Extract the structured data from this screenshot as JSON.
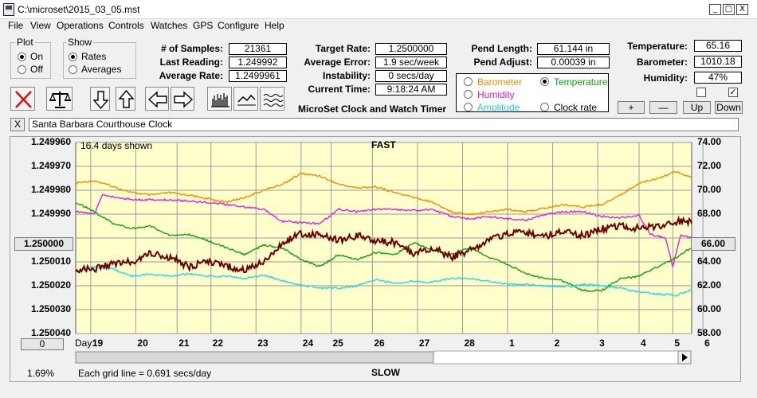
{
  "window": {
    "title": "C:\\microset\\2015_03_05.mst",
    "min_glyph": "_",
    "max_glyph": "□",
    "close_glyph": "X"
  },
  "menu": [
    "File",
    "View",
    "Operations",
    "Controls",
    "Watches",
    "GPS",
    "Configure",
    "Help"
  ],
  "plot_group": {
    "title": "Plot",
    "on_label": "On",
    "off_label": "Off",
    "selected": "On"
  },
  "show_group": {
    "title": "Show",
    "rates_label": "Rates",
    "averages_label": "Averages",
    "selected": "Rates"
  },
  "stats": {
    "samples_label": "# of Samples:",
    "samples_value": "21361",
    "last_label": "Last Reading:",
    "last_value": "1.249992",
    "avg_rate_label": "Average Rate:",
    "avg_rate_value": "1.2499961",
    "target_label": "Target Rate:",
    "target_value": "1.2500000",
    "avg_error_label": "Average Error:",
    "avg_error_value": "1.9 sec/week",
    "instability_label": "Instability:",
    "instability_value": "0 secs/day",
    "current_time_label": "Current Time:",
    "current_time_value": "9:18:24 AM",
    "subtitle": "MicroSet Clock and Watch Timer"
  },
  "pendulum": {
    "length_label": "Pend Length:",
    "length_value": "61.144 in",
    "adjust_label": "Pend Adjust:",
    "adjust_value": "0.00039 in"
  },
  "sensors": {
    "temperature_label": "Temperature:",
    "temperature_value": "65.16",
    "barometer_label": "Barometer:",
    "barometer_value": "1010.18",
    "humidity_label": "Humidity:",
    "humidity_value": "47%",
    "checkbox_2_glyph": "✓"
  },
  "overlay_select": {
    "barometer_label": "Barometer",
    "temperature_label": "Temperature",
    "humidity_label": "Humidity",
    "amplitude_label": "Amplitude",
    "clock_rate_label": "Clock rate",
    "selected": "Temperature"
  },
  "scale_buttons": {
    "plus": "+",
    "minus": "—",
    "up": "Up",
    "down": "Down"
  },
  "clock_name": "Santa Barbara Courthouse Clock",
  "close_name_glyph": "X",
  "colors": {
    "plot_bg": "#ffffcc",
    "barometer": "#f08c00",
    "humidity": "#e020e0",
    "temperature": "#10a010",
    "amplitude": "#20d8e8",
    "clock_rate": "#6b0000",
    "grid": "#9a9a9a"
  },
  "chart": {
    "days_shown": "16.4 days shown",
    "fast_label": "FAST",
    "slow_label": "SLOW",
    "left_center_value": "1.250000",
    "right_center_value": "66.00",
    "offset_value": "0",
    "day_label": "Day:",
    "grid_note": "Each grid line = 0.691 secs/day",
    "percent": "1.69%"
  },
  "chart_data": {
    "type": "line",
    "x_range": [
      0,
      16.4
    ],
    "x_tick_labels": [
      "19",
      "20",
      "21",
      "22",
      "23",
      "24",
      "25",
      "26",
      "27",
      "28",
      "1",
      "2",
      "3",
      "4",
      "5",
      "6"
    ],
    "x_tick_positions": [
      0.4,
      1.6,
      2.7,
      3.6,
      4.8,
      6.0,
      6.8,
      7.9,
      9.1,
      10.3,
      11.5,
      12.7,
      13.9,
      15.0,
      15.9,
      16.7
    ],
    "y_left_ticks": [
      "1.249960",
      "1.249970",
      "1.249980",
      "1.249990",
      "1.250000",
      "1.250010",
      "1.250020",
      "1.250030",
      "1.250040"
    ],
    "y_left_range": [
      1.24996,
      1.25004
    ],
    "y_left_inverted": true,
    "y_right_ticks": [
      "74.00",
      "72.00",
      "70.00",
      "68.00",
      "66.00",
      "64.00",
      "62.00",
      "60.00",
      "58.00"
    ],
    "y_right_range": [
      58,
      74
    ],
    "grid": true,
    "series": [
      {
        "name": "Barometer",
        "axis": "right",
        "x": [
          0,
          0.5,
          1.0,
          1.5,
          2.0,
          2.5,
          3.0,
          3.5,
          4.0,
          4.5,
          5.0,
          5.5,
          6.0,
          6.5,
          7.0,
          7.5,
          8.0,
          8.5,
          9.0,
          9.5,
          10.0,
          10.5,
          11.0,
          11.5,
          12.0,
          12.5,
          13.0,
          13.5,
          14.0,
          14.5,
          15.0,
          15.5,
          16.0,
          16.4
        ],
        "y": [
          70.6,
          70.8,
          70.3,
          69.8,
          69.6,
          69.8,
          69.6,
          69.3,
          69.0,
          69.4,
          70.0,
          70.5,
          71.4,
          71.2,
          70.5,
          70.2,
          70.3,
          69.8,
          69.4,
          69.0,
          68.2,
          68.0,
          68.2,
          68.4,
          68.2,
          68.5,
          68.8,
          68.6,
          68.8,
          69.6,
          70.6,
          71.0,
          71.6,
          71.0
        ]
      },
      {
        "name": "Humidity",
        "axis": "right",
        "x": [
          0,
          0.5,
          0.7,
          1.5,
          2.5,
          3.5,
          4.5,
          5.0,
          5.5,
          6.0,
          6.5,
          7.0,
          7.5,
          8.0,
          8.5,
          9.0,
          9.5,
          10.0,
          10.5,
          11.0,
          11.5,
          12.0,
          12.5,
          13.0,
          13.5,
          14.0,
          14.5,
          15.0,
          15.3,
          15.7,
          15.9,
          16.1,
          16.4
        ],
        "y": [
          68.2,
          68.0,
          69.6,
          69.2,
          69.2,
          69.0,
          68.6,
          68.4,
          67.4,
          67.3,
          67.2,
          68.4,
          68.2,
          68.4,
          68.4,
          68.3,
          68.4,
          67.8,
          67.6,
          67.8,
          67.6,
          67.5,
          68.0,
          68.2,
          68.2,
          67.8,
          67.7,
          67.9,
          66.3,
          66.0,
          63.6,
          66.2,
          66.0
        ]
      },
      {
        "name": "Temperature",
        "axis": "right",
        "x": [
          0,
          0.5,
          1.0,
          1.5,
          2.0,
          2.5,
          3.0,
          3.5,
          4.0,
          4.5,
          5.0,
          5.5,
          6.0,
          6.5,
          7.0,
          7.5,
          8.0,
          8.5,
          9.0,
          9.5,
          10.0,
          10.5,
          11.0,
          11.5,
          12.0,
          12.5,
          13.0,
          13.5,
          14.0,
          14.5,
          15.0,
          15.5,
          16.0,
          16.4
        ],
        "y": [
          69.0,
          68.2,
          67.2,
          66.8,
          67.0,
          66.2,
          66.3,
          65.8,
          65.2,
          64.6,
          65.4,
          65.2,
          64.2,
          63.6,
          64.6,
          64.2,
          64.8,
          64.6,
          65.6,
          65.0,
          64.6,
          65.2,
          64.4,
          63.8,
          63.0,
          62.6,
          62.4,
          61.6,
          61.6,
          62.6,
          62.8,
          63.6,
          64.4,
          65.2
        ]
      },
      {
        "name": "Amplitude",
        "axis": "right",
        "x": [
          0,
          0.5,
          1.0,
          1.5,
          2.0,
          2.5,
          3.0,
          3.5,
          4.0,
          4.5,
          5.0,
          5.5,
          6.0,
          6.5,
          7.0,
          7.5,
          8.0,
          8.5,
          9.0,
          9.5,
          10.0,
          10.5,
          11.0,
          11.5,
          12.0,
          12.5,
          13.0,
          13.5,
          14.0,
          14.5,
          15.0,
          15.5,
          16.0,
          16.4
        ],
        "y": [
          63.2,
          63.6,
          63.4,
          62.8,
          63.0,
          62.8,
          63.0,
          62.8,
          62.8,
          62.6,
          62.9,
          62.4,
          62.1,
          61.8,
          61.8,
          62.0,
          62.5,
          62.2,
          62.4,
          62.3,
          62.6,
          62.6,
          62.4,
          62.1,
          62.1,
          62.0,
          61.9,
          62.1,
          62.0,
          61.8,
          61.5,
          61.3,
          61.2,
          61.7
        ]
      },
      {
        "name": "Clock rate",
        "axis": "left",
        "x": [
          0,
          0.5,
          1.0,
          1.5,
          2.0,
          2.5,
          3.0,
          3.5,
          4.0,
          4.5,
          5.0,
          5.5,
          6.0,
          6.5,
          7.0,
          7.5,
          8.0,
          8.5,
          9.0,
          9.5,
          10.0,
          10.5,
          11.0,
          11.5,
          12.0,
          12.5,
          13.0,
          13.5,
          14.0,
          14.5,
          15.0,
          15.5,
          16.0,
          16.4
        ],
        "y": [
          1.250013,
          1.250013,
          1.250011,
          1.25001,
          1.250006,
          1.250008,
          1.250012,
          1.25001,
          1.250012,
          1.250013,
          1.25001,
          1.250002,
          1.249998,
          1.249999,
          1.250001,
          1.249999,
          1.250001,
          1.250002,
          1.250007,
          1.250004,
          1.250008,
          1.250005,
          1.250001,
          1.249998,
          1.249998,
          1.249999,
          1.249997,
          1.249999,
          1.249996,
          1.249995,
          1.249996,
          1.249995,
          1.249993,
          1.249993
        ]
      }
    ]
  }
}
